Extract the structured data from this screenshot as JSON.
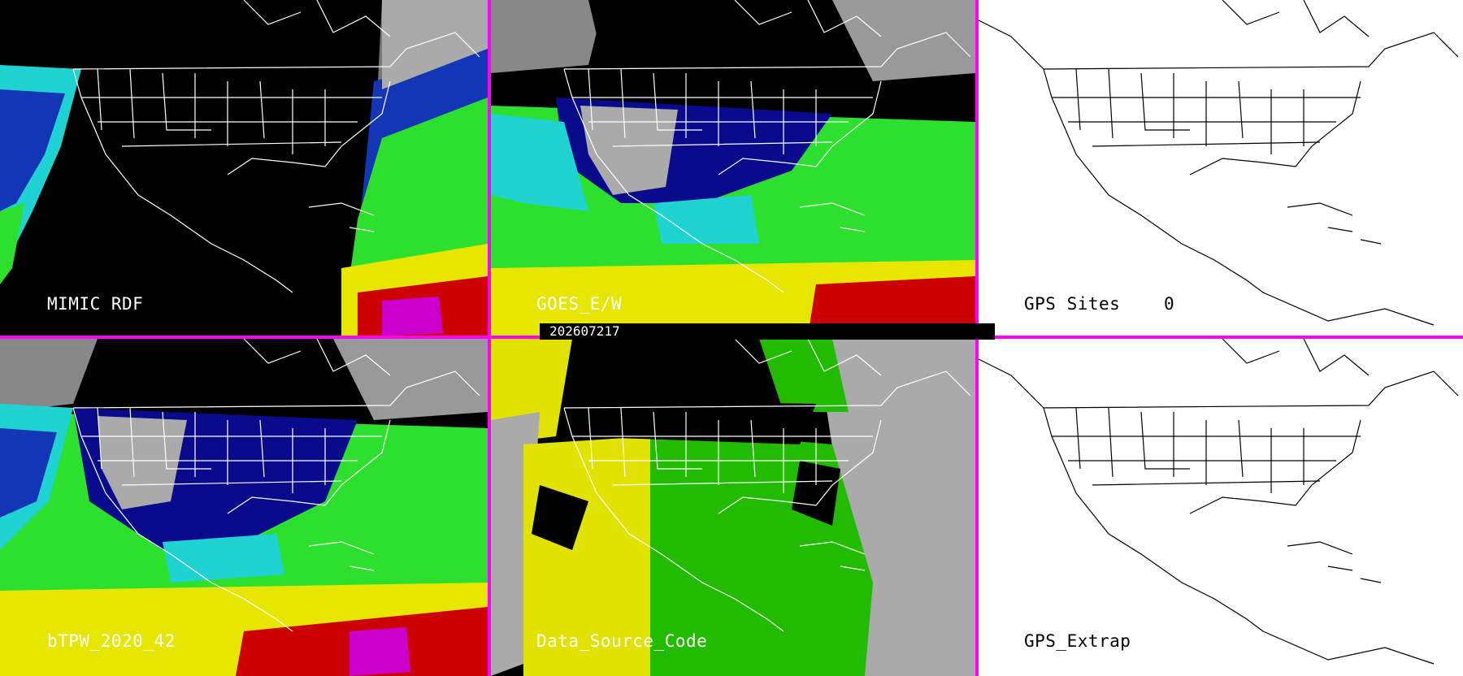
{
  "panels": [
    {
      "id": "mimic",
      "label": "MIMIC RDF",
      "style": "dark"
    },
    {
      "id": "goes",
      "label": "GOES_E/W",
      "style": "dark"
    },
    {
      "id": "gps-sites",
      "label": "GPS Sites",
      "value": "0",
      "style": "light"
    },
    {
      "id": "btpw",
      "label": "bTPW_2020_42",
      "style": "dark"
    },
    {
      "id": "dsc",
      "label": "Data_Source_Code",
      "style": "dark"
    },
    {
      "id": "gps-extrap",
      "label": "GPS_Extrap",
      "style": "light"
    }
  ],
  "timestamp": "202607217",
  "colors": {
    "divider": "#ff00ff",
    "land_outline_dark": "#ffffff",
    "land_outline_light": "#000000",
    "dry": "#0a0a8c",
    "moist": "#23c7dd",
    "wet": "#33dd22",
    "very_wet": "#e6e600",
    "saturated": "#cc0000",
    "extreme": "#cc00cc",
    "cloud": "#bbbbbb",
    "dsc_yellow": "#e2e200",
    "dsc_green": "#22bb00",
    "dsc_gray": "#aaaaaa"
  }
}
